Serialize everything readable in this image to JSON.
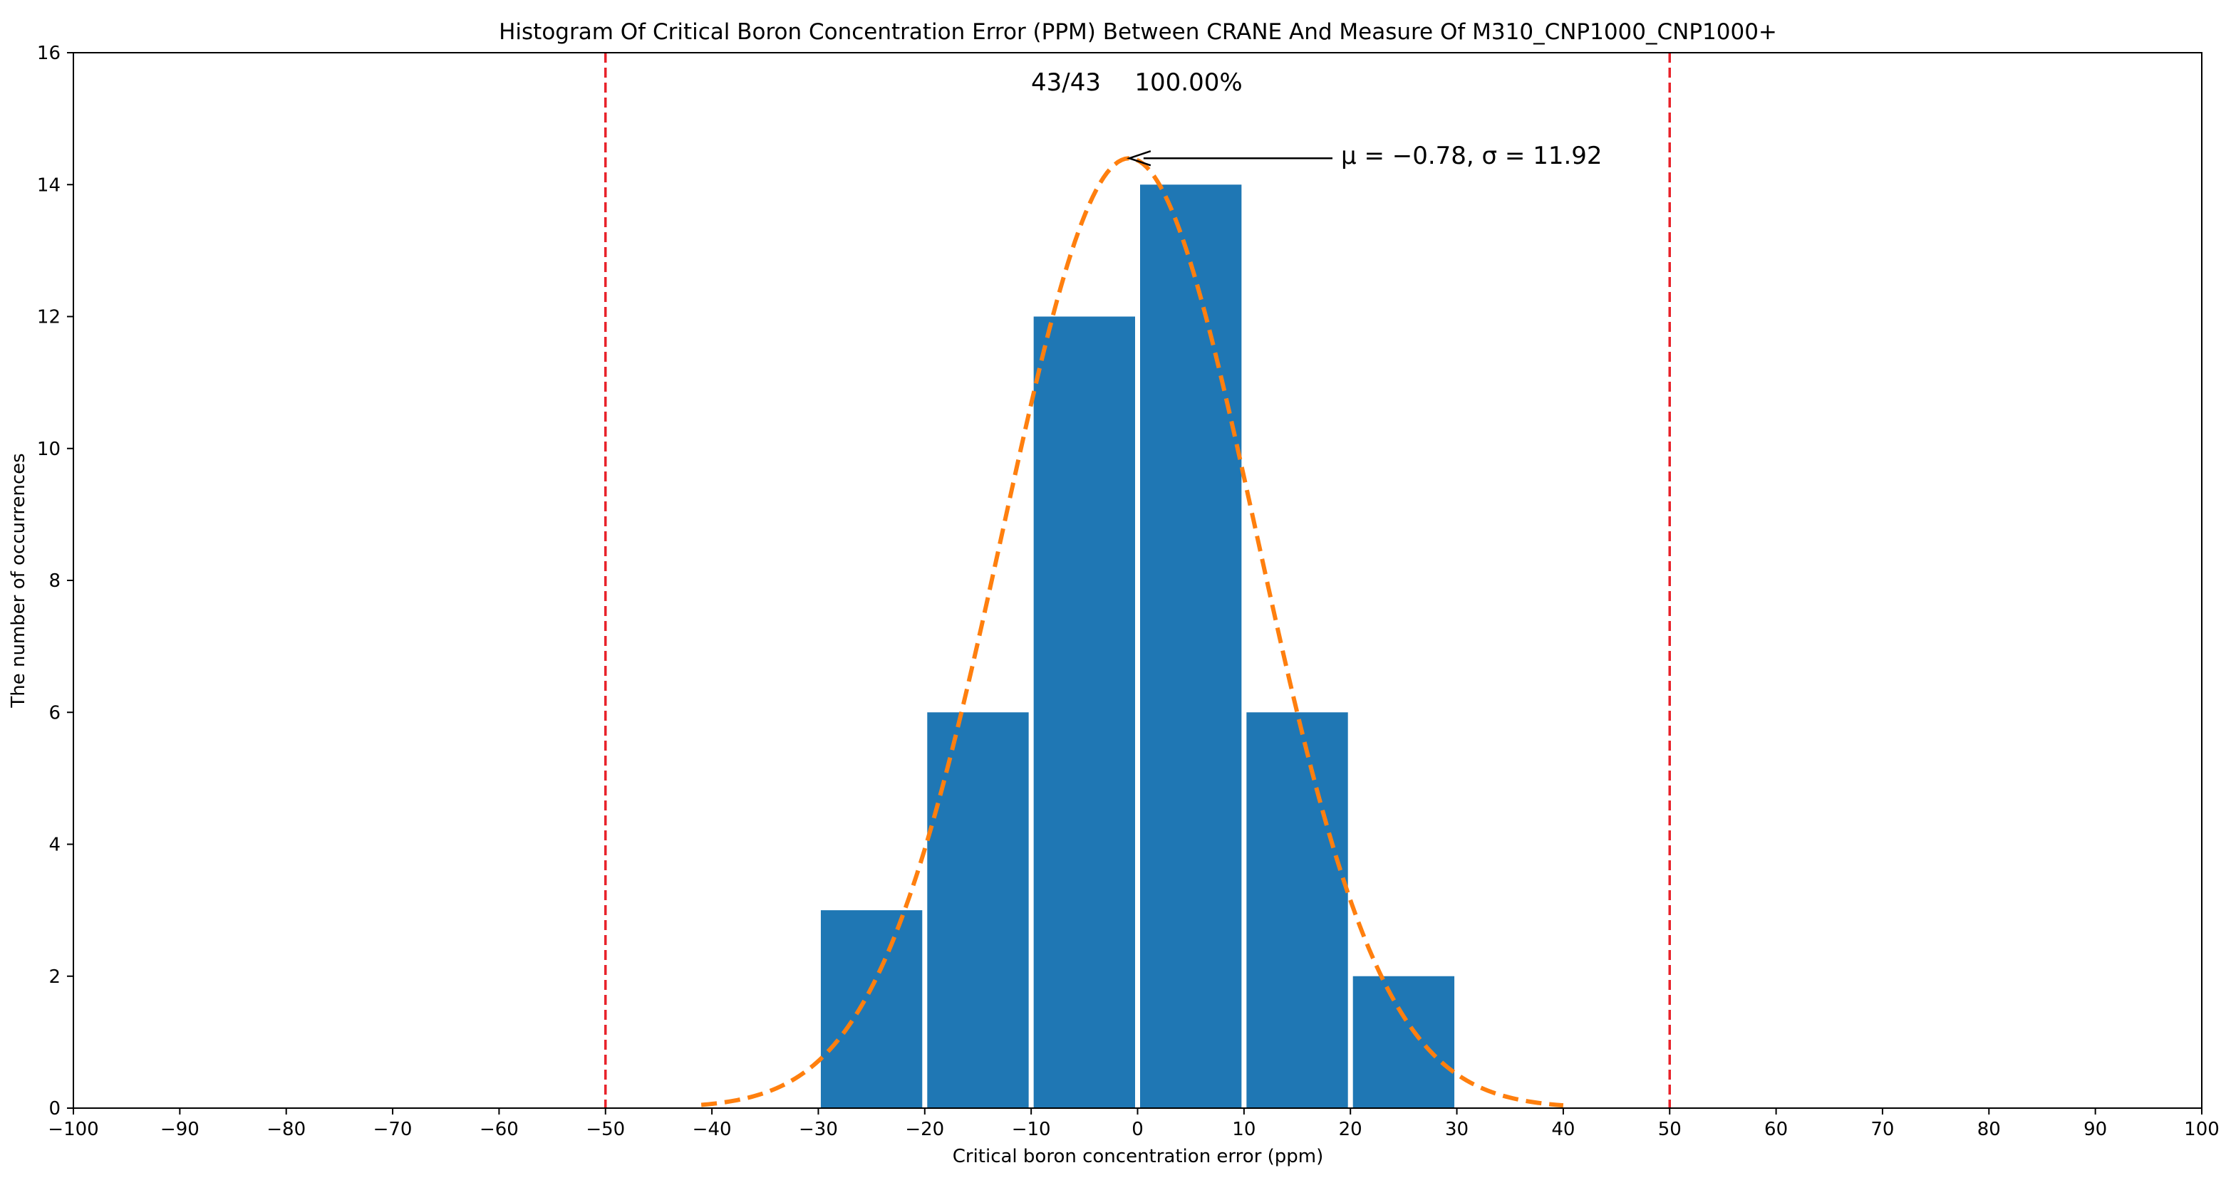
{
  "chart_data": {
    "type": "bar",
    "title": "Histogram Of Critical Boron Concentration Error (PPM) Between CRANE And Measure Of M310_CNP1000_CNP1000+",
    "xlabel": "Critical boron concentration error (ppm)",
    "ylabel": "The number of occurrences",
    "xlim": [
      -100,
      100
    ],
    "ylim": [
      0,
      16
    ],
    "xticks": [
      -100,
      -90,
      -80,
      -70,
      -60,
      -50,
      -40,
      -30,
      -20,
      -10,
      0,
      10,
      20,
      30,
      40,
      50,
      60,
      70,
      80,
      90,
      100
    ],
    "xtick_labels": [
      "−100",
      "−90",
      "−80",
      "−70",
      "−60",
      "−50",
      "−40",
      "−30",
      "−20",
      "−10",
      "0",
      "10",
      "20",
      "30",
      "40",
      "50",
      "60",
      "70",
      "80",
      "90",
      "100"
    ],
    "yticks": [
      0,
      2,
      4,
      6,
      8,
      10,
      12,
      14,
      16
    ],
    "ytick_labels": [
      "0",
      "2",
      "4",
      "6",
      "8",
      "10",
      "12",
      "14",
      "16"
    ],
    "bins": [
      {
        "start": -30,
        "end": -20,
        "count": 3
      },
      {
        "start": -20,
        "end": -10,
        "count": 6
      },
      {
        "start": -10,
        "end": 0,
        "count": 12
      },
      {
        "start": 0,
        "end": 10,
        "count": 14
      },
      {
        "start": 10,
        "end": 20,
        "count": 6
      },
      {
        "start": 20,
        "end": 30,
        "count": 2
      }
    ],
    "fit_curve": {
      "type": "normal",
      "mu": -0.78,
      "sigma": 11.92,
      "peak": 14.4,
      "x_range": [
        -41,
        40
      ]
    },
    "limit_lines": [
      -50,
      50
    ],
    "annotations": {
      "count_text": "43/43",
      "percent_text": "100.00%",
      "stats_text": "μ = −0.78, σ = 11.92"
    },
    "grid": false,
    "legend": "none",
    "colors": {
      "bar": "#1f77b4",
      "fit_curve": "#ff7f0e",
      "limit_line": "#e8222a",
      "axis": "#000000"
    }
  }
}
